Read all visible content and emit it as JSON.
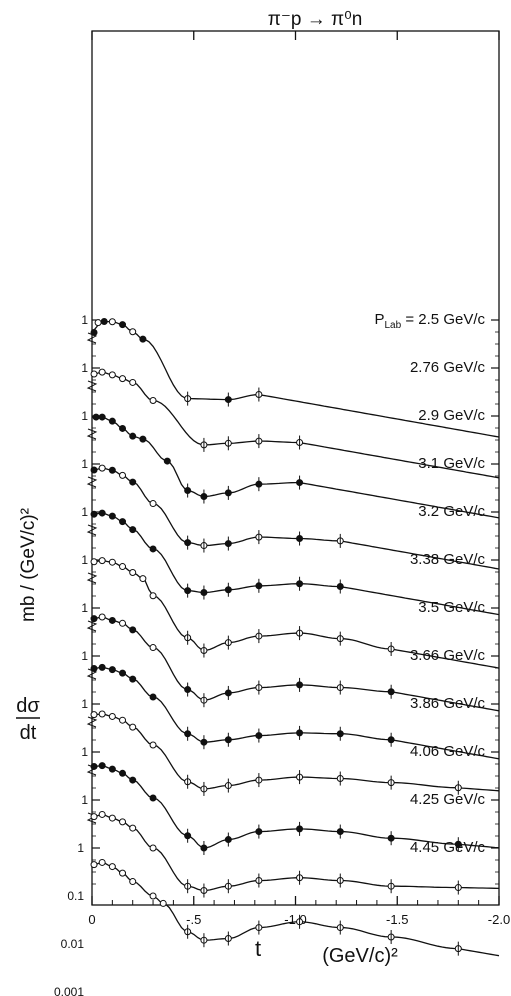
{
  "chart_data": {
    "type": "scatter",
    "title": "π⁻p → π⁰n",
    "xlabel": "t",
    "xunit": "(GeV/c)²",
    "ylabel_top": "dσ",
    "ylabel_bottom": "dt",
    "ylabel_unit": "mb / (GeV/c)²",
    "x_range": [
      0,
      -2.0
    ],
    "x_ticks": [
      {
        "value": 0,
        "label": "0"
      },
      {
        "value": -0.5,
        "label": "-.5"
      },
      {
        "value": -1.0,
        "label": "-1.0"
      },
      {
        "value": -1.5,
        "label": "-1.5"
      },
      {
        "value": -2.0,
        "label": "-2.0"
      }
    ],
    "y_scale": "log, each curve offset by one decade",
    "y_tick_labels_bottom": [
      "0.001",
      "0.01",
      "0.1",
      "1"
    ],
    "y_ref_label": "1",
    "series_prefix": "P",
    "series_prefix_sub": "Lab",
    "series_prefix_eq": " = ",
    "series": [
      {
        "name": "2.5 GeV/c",
        "marker": "mixed",
        "points": [
          [
            -0.01,
            0.55
          ],
          [
            -0.03,
            0.88
          ],
          [
            -0.06,
            0.93
          ],
          [
            -0.1,
            0.92
          ],
          [
            -0.15,
            0.8
          ],
          [
            -0.2,
            0.57
          ],
          [
            -0.25,
            0.4
          ],
          [
            -0.47,
            0.023
          ],
          [
            -0.67,
            0.022
          ],
          [
            -0.82,
            0.028
          ]
        ]
      },
      {
        "name": "2.76 GeV/c",
        "marker": "open",
        "points": [
          [
            -0.01,
            0.75
          ],
          [
            -0.05,
            0.82
          ],
          [
            -0.1,
            0.72
          ],
          [
            -0.15,
            0.6
          ],
          [
            -0.2,
            0.5
          ],
          [
            -0.3,
            0.21
          ],
          [
            -0.55,
            0.025
          ],
          [
            -0.67,
            0.027
          ],
          [
            -0.82,
            0.03
          ],
          [
            -1.02,
            0.028
          ]
        ]
      },
      {
        "name": "2.9 GeV/c",
        "marker": "filled",
        "points": [
          [
            -0.02,
            0.95
          ],
          [
            -0.05,
            0.95
          ],
          [
            -0.1,
            0.78
          ],
          [
            -0.15,
            0.55
          ],
          [
            -0.2,
            0.38
          ],
          [
            -0.25,
            0.33
          ],
          [
            -0.37,
            0.115
          ],
          [
            -0.47,
            0.028
          ],
          [
            -0.55,
            0.021
          ],
          [
            -0.67,
            0.025
          ],
          [
            -0.82,
            0.038
          ],
          [
            -1.02,
            0.041
          ]
        ]
      },
      {
        "name": "3.1 GeV/c",
        "marker": "mixed",
        "points": [
          [
            -0.01,
            0.75
          ],
          [
            -0.05,
            0.82
          ],
          [
            -0.1,
            0.74
          ],
          [
            -0.15,
            0.58
          ],
          [
            -0.2,
            0.42
          ],
          [
            -0.3,
            0.15
          ],
          [
            -0.47,
            0.023
          ],
          [
            -0.55,
            0.02
          ],
          [
            -0.67,
            0.022
          ],
          [
            -0.82,
            0.03
          ],
          [
            -1.02,
            0.028
          ],
          [
            -1.22,
            0.025
          ]
        ]
      },
      {
        "name": "3.2 GeV/c",
        "marker": "filled",
        "points": [
          [
            -0.01,
            0.9
          ],
          [
            -0.05,
            0.95
          ],
          [
            -0.1,
            0.82
          ],
          [
            -0.15,
            0.63
          ],
          [
            -0.2,
            0.43
          ],
          [
            -0.3,
            0.17
          ],
          [
            -0.47,
            0.023
          ],
          [
            -0.55,
            0.021
          ],
          [
            -0.67,
            0.024
          ],
          [
            -0.82,
            0.029
          ],
          [
            -1.02,
            0.032
          ],
          [
            -1.22,
            0.028
          ]
        ]
      },
      {
        "name": "3.38 GeV/c",
        "marker": "open",
        "points": [
          [
            -0.01,
            0.92
          ],
          [
            -0.05,
            0.97
          ],
          [
            -0.1,
            0.9
          ],
          [
            -0.15,
            0.73
          ],
          [
            -0.2,
            0.55
          ],
          [
            -0.25,
            0.41
          ],
          [
            -0.3,
            0.18
          ],
          [
            -0.47,
            0.024
          ],
          [
            -0.55,
            0.013
          ],
          [
            -0.67,
            0.019
          ],
          [
            -0.82,
            0.026
          ],
          [
            -1.02,
            0.03
          ],
          [
            -1.22,
            0.023
          ],
          [
            -1.47,
            0.014
          ]
        ]
      },
      {
        "name": "3.5 GeV/c",
        "marker": "mixed",
        "points": [
          [
            -0.01,
            0.6
          ],
          [
            -0.05,
            0.65
          ],
          [
            -0.1,
            0.55
          ],
          [
            -0.15,
            0.48
          ],
          [
            -0.2,
            0.35
          ],
          [
            -0.3,
            0.15
          ],
          [
            -0.47,
            0.02
          ],
          [
            -0.55,
            0.012
          ],
          [
            -0.67,
            0.017
          ],
          [
            -0.82,
            0.022
          ],
          [
            -1.02,
            0.025
          ],
          [
            -1.22,
            0.022
          ],
          [
            -1.47,
            0.018
          ]
        ]
      },
      {
        "name": "3.66 GeV/c",
        "marker": "filled",
        "points": [
          [
            -0.01,
            0.55
          ],
          [
            -0.05,
            0.58
          ],
          [
            -0.1,
            0.52
          ],
          [
            -0.15,
            0.44
          ],
          [
            -0.2,
            0.33
          ],
          [
            -0.3,
            0.14
          ],
          [
            -0.47,
            0.024
          ],
          [
            -0.55,
            0.016
          ],
          [
            -0.67,
            0.018
          ],
          [
            -0.82,
            0.022
          ],
          [
            -1.02,
            0.025
          ],
          [
            -1.22,
            0.024
          ],
          [
            -1.47,
            0.018
          ]
        ]
      },
      {
        "name": "3.86 GeV/c",
        "marker": "open",
        "points": [
          [
            -0.01,
            0.6
          ],
          [
            -0.05,
            0.62
          ],
          [
            -0.1,
            0.55
          ],
          [
            -0.15,
            0.46
          ],
          [
            -0.2,
            0.33
          ],
          [
            -0.3,
            0.14
          ],
          [
            -0.47,
            0.024
          ],
          [
            -0.55,
            0.017
          ],
          [
            -0.67,
            0.02
          ],
          [
            -0.82,
            0.026
          ],
          [
            -1.02,
            0.03
          ],
          [
            -1.22,
            0.028
          ],
          [
            -1.47,
            0.023
          ],
          [
            -1.8,
            0.018
          ]
        ]
      },
      {
        "name": "4.06 GeV/c",
        "marker": "filled",
        "points": [
          [
            -0.01,
            0.5
          ],
          [
            -0.05,
            0.52
          ],
          [
            -0.1,
            0.44
          ],
          [
            -0.15,
            0.36
          ],
          [
            -0.2,
            0.26
          ],
          [
            -0.3,
            0.11
          ],
          [
            -0.47,
            0.018
          ],
          [
            -0.55,
            0.01
          ],
          [
            -0.67,
            0.015
          ],
          [
            -0.82,
            0.022
          ],
          [
            -1.02,
            0.025
          ],
          [
            -1.22,
            0.022
          ],
          [
            -1.47,
            0.016
          ],
          [
            -1.8,
            0.012
          ]
        ]
      },
      {
        "name": "4.25 GeV/c",
        "marker": "open",
        "points": [
          [
            -0.01,
            0.45
          ],
          [
            -0.05,
            0.5
          ],
          [
            -0.1,
            0.42
          ],
          [
            -0.15,
            0.35
          ],
          [
            -0.2,
            0.26
          ],
          [
            -0.3,
            0.1
          ],
          [
            -0.47,
            0.016
          ],
          [
            -0.55,
            0.013
          ],
          [
            -0.67,
            0.016
          ],
          [
            -0.82,
            0.021
          ],
          [
            -1.02,
            0.024
          ],
          [
            -1.22,
            0.021
          ],
          [
            -1.47,
            0.016
          ],
          [
            -1.8,
            0.015
          ]
        ]
      },
      {
        "name": "4.45 GeV/c",
        "marker": "open",
        "points": [
          [
            -0.01,
            0.45
          ],
          [
            -0.05,
            0.5
          ],
          [
            -0.1,
            0.41
          ],
          [
            -0.15,
            0.3
          ],
          [
            -0.2,
            0.2
          ],
          [
            -0.3,
            0.1
          ],
          [
            -0.35,
            0.07
          ],
          [
            -0.47,
            0.018
          ],
          [
            -0.55,
            0.012
          ],
          [
            -0.67,
            0.013
          ],
          [
            -0.82,
            0.022
          ],
          [
            -1.02,
            0.029
          ],
          [
            -1.22,
            0.022
          ],
          [
            -1.47,
            0.014
          ],
          [
            -1.8,
            0.008
          ]
        ]
      }
    ]
  }
}
